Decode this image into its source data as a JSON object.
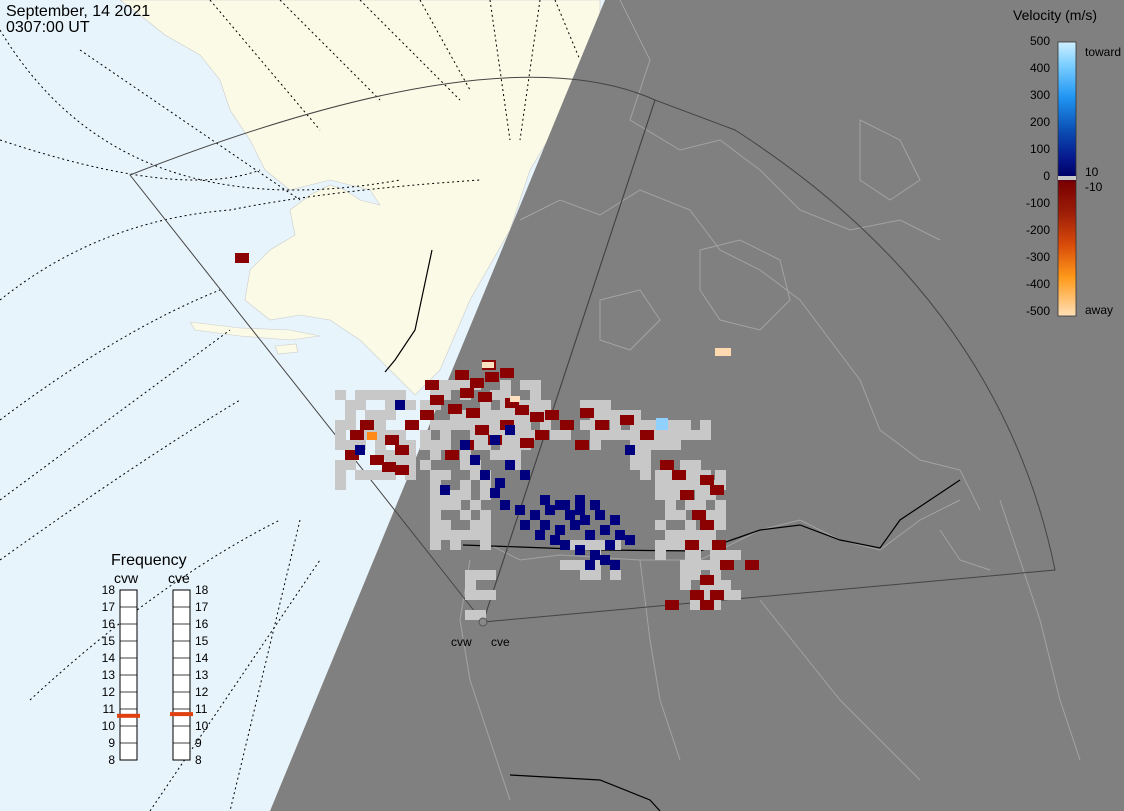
{
  "header": {
    "date": "September, 14 2021",
    "time": "0307:00 UT"
  },
  "colors": {
    "ocean": "#e8f4fb",
    "land": "#fafae6",
    "night": "#808080",
    "ground_scatter": "#c8c8c8",
    "toward_dark": "#00007f",
    "away_dark": "#8b0000"
  },
  "velocity_legend": {
    "title": "Velocity (m/s)",
    "ticks": [
      "500",
      "400",
      "300",
      "200",
      "100",
      "0",
      "-100",
      "-200",
      "-300",
      "-400",
      "-500"
    ],
    "toward_label": "toward",
    "away_label": "away",
    "inner_pos": "10",
    "inner_neg": "-10"
  },
  "frequency_panel": {
    "title": "Frequency",
    "radars": [
      {
        "name": "cvw",
        "value_mhz": 10.6
      },
      {
        "name": "cve",
        "value_mhz": 10.7
      }
    ],
    "ticks": [
      "18",
      "17",
      "16",
      "15",
      "14",
      "13",
      "12",
      "11",
      "10",
      "9",
      "8"
    ]
  },
  "radar_labels": {
    "west": "cvw",
    "east": "cve"
  },
  "icons": {
    "radar_site": "circle-marker-icon"
  }
}
